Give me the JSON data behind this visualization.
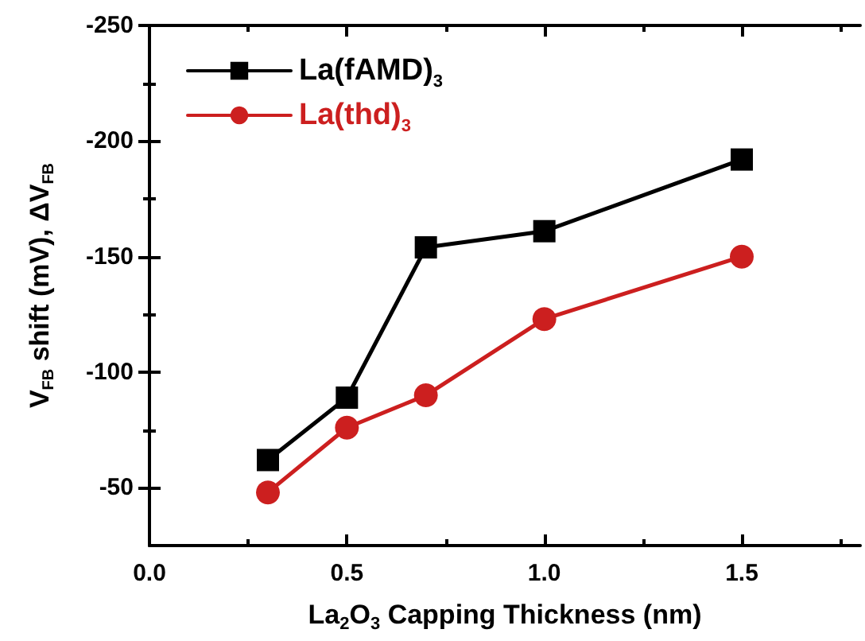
{
  "chart_data": {
    "type": "line",
    "xlabel": "La$_{2}$O$_{3}$ Capping Thickness (nm)",
    "ylabel": "V$_{FB}$ shift (mV), ΔV$_{FB}$",
    "x": [
      0.3,
      0.5,
      0.7,
      1.0,
      1.5
    ],
    "series": [
      {
        "name": "La(fAMD)$_{3}$",
        "color": "#000000",
        "marker": "square",
        "values": [
          -62,
          -89,
          -154,
          -161,
          -192
        ]
      },
      {
        "name": "La(thd)$_{3}$",
        "color": "#cc1f1f",
        "marker": "circle",
        "values": [
          -48,
          -76,
          -90,
          -123,
          -150
        ]
      }
    ],
    "xlim": [
      0,
      1.8
    ],
    "xticks": [
      {
        "value": 0,
        "label": "0.0"
      },
      0.5,
      {
        "value": 1,
        "label": "1.0"
      },
      1.5
    ],
    "ylim": [
      -25,
      -250
    ],
    "yticks": [
      -250,
      -200,
      -150,
      -100,
      -50
    ],
    "legend": "top left",
    "grid": false,
    "line_style": "solid"
  }
}
